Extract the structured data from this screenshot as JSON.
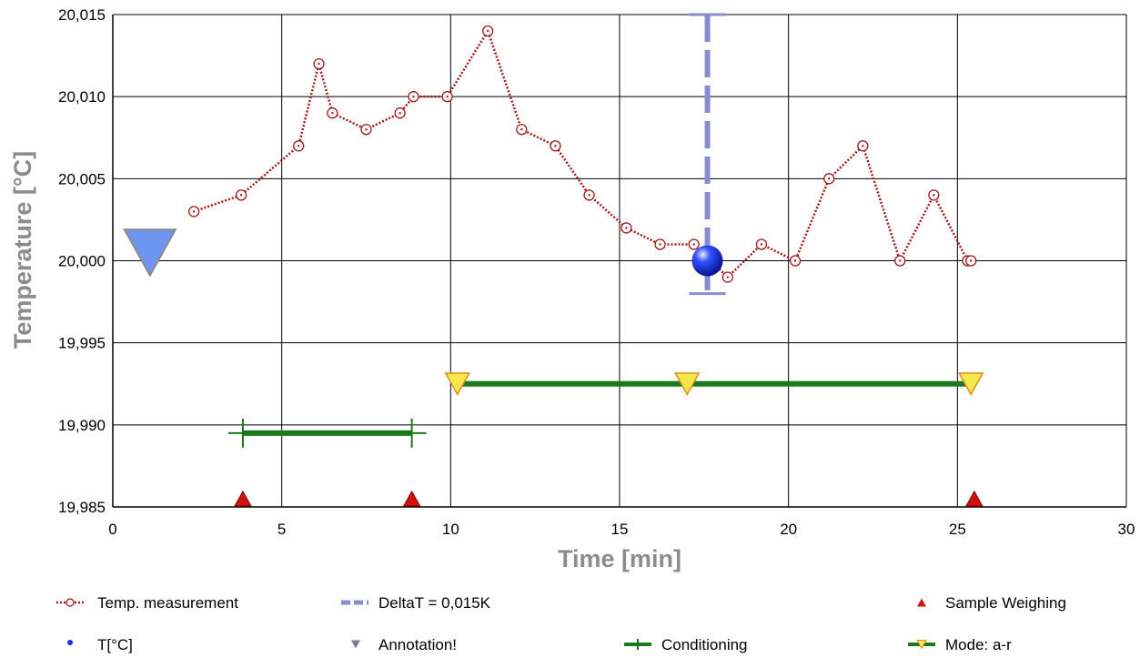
{
  "chart_data": {
    "type": "line",
    "xlabel": "Time [min]",
    "ylabel": "Temperature [°C]",
    "xlim": [
      0,
      30
    ],
    "ylim": [
      19.985,
      20.015
    ],
    "x_ticks": [
      0,
      5,
      10,
      15,
      20,
      25,
      30
    ],
    "y_ticks": [
      19.985,
      19.99,
      19.995,
      20.0,
      20.005,
      20.01,
      20.015
    ],
    "x_tick_labels": [
      "0",
      "5",
      "10",
      "15",
      "20",
      "25",
      "30"
    ],
    "y_tick_labels": [
      "19,985",
      "19,990",
      "19,995",
      "20,000",
      "20,005",
      "20,010",
      "20,015"
    ],
    "grid": true,
    "legend_position": "bottom",
    "series": [
      {
        "name": "Temp. measurement",
        "style": "dotted-line-circle-markers",
        "color": "#a01818",
        "x": [
          2.4,
          3.8,
          5.5,
          6.1,
          6.5,
          7.5,
          8.5,
          8.9,
          9.9,
          11.1,
          12.1,
          13.1,
          14.1,
          15.2,
          16.2,
          17.2,
          18.2,
          19.2,
          20.2,
          21.2,
          22.2,
          23.3,
          24.3,
          25.3,
          25.4
        ],
        "y": [
          20.003,
          20.004,
          20.007,
          20.012,
          20.009,
          20.008,
          20.009,
          20.01,
          20.01,
          20.014,
          20.008,
          20.007,
          20.004,
          20.002,
          20.001,
          20.001,
          19.999,
          20.001,
          20.0,
          20.005,
          20.007,
          20.0,
          20.004,
          20.0,
          20.0
        ]
      },
      {
        "name": "DeltaT = 0,015K",
        "style": "dashed-error-bar",
        "color": "#8a8ad0",
        "x": 17.6,
        "y_low": 19.998,
        "y_high": 20.015
      },
      {
        "name": "Sample Weighing",
        "style": "triangle-up-markers",
        "color": "#d41010",
        "x": [
          3.85,
          8.85,
          25.5
        ],
        "y": [
          19.985,
          19.985,
          19.985
        ]
      },
      {
        "name": "T[°C]",
        "style": "sphere-marker",
        "color": "#1a2ef0",
        "x": [
          17.6
        ],
        "y": [
          20.0
        ]
      },
      {
        "name": "Annotation!",
        "style": "triangle-down-marker",
        "color": "#6e96f0",
        "x": [
          1.1
        ],
        "y": [
          20.0005
        ]
      },
      {
        "name": "Conditioning",
        "style": "thick-line-range",
        "color": "#1a7a1a",
        "x_start": 3.85,
        "x_end": 8.85,
        "y": 19.9895
      },
      {
        "name": "Mode: a-r",
        "style": "thick-line-triangle-down-markers",
        "color": "#1a7a1a",
        "marker_color": "#f5e84a",
        "x": [
          10.2,
          17.0,
          25.4
        ],
        "y": 19.9925
      }
    ]
  },
  "legend": {
    "items": [
      "Temp. measurement",
      "DeltaT = 0,015K",
      "Sample Weighing",
      "T[°C]",
      "Annotation!",
      "Conditioning",
      "Mode: a-r"
    ]
  }
}
